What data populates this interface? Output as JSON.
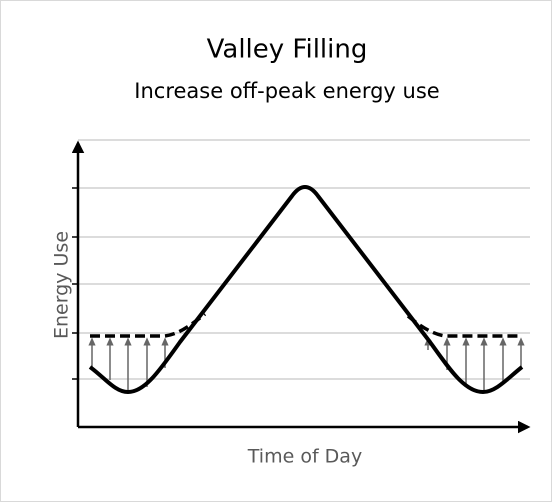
{
  "title": "Valley Filling",
  "subtitle": "Increase off-peak energy use",
  "x_axis_label": "Time of Day",
  "y_axis_label": "Energy Use"
}
